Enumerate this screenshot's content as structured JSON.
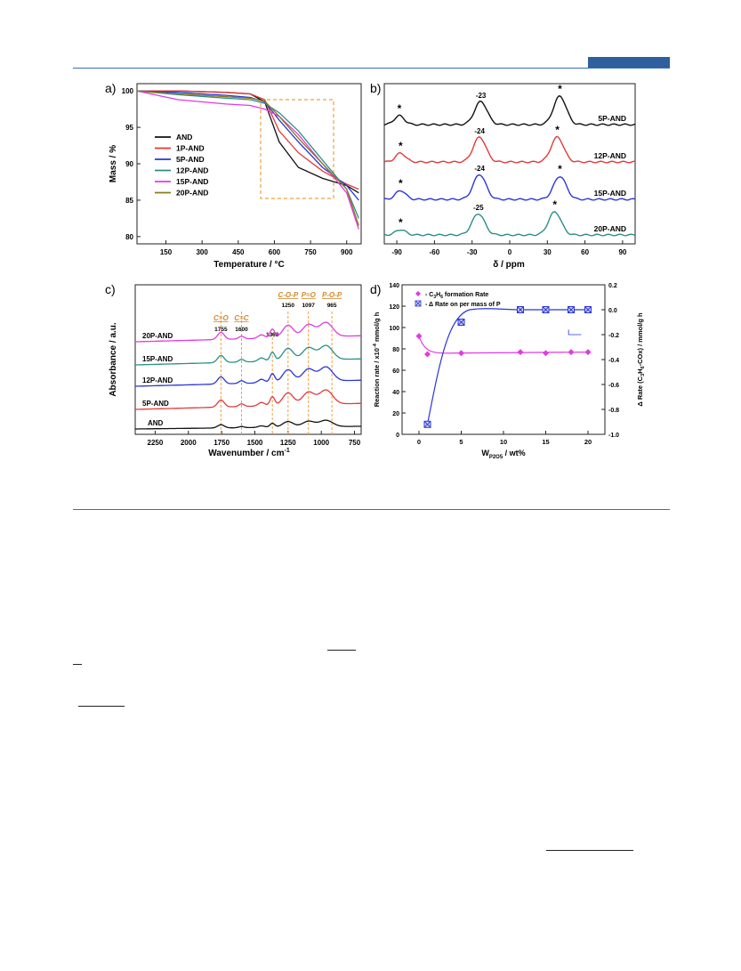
{
  "colors": {
    "rule": "#3a6fb7",
    "accent": "#2f5f9f"
  },
  "panels": {
    "a": {
      "label": "a)",
      "chart_data": {
        "type": "line",
        "xlabel": "Temperature / °C",
        "ylabel": "Mass / %",
        "xlim": [
          30,
          960
        ],
        "ylim": [
          79,
          101
        ],
        "xticks": [
          150,
          300,
          450,
          600,
          750,
          900
        ],
        "yticks": [
          80,
          85,
          90,
          95,
          100
        ],
        "legend_position": "left",
        "series": [
          {
            "name": "AND",
            "color": "#111111",
            "x": [
              30,
              200,
              400,
              500,
              560,
              620,
              700,
              800,
              900,
              950
            ],
            "y": [
              100,
              100,
              99.8,
              99.6,
              98.5,
              93,
              89.5,
              88,
              87,
              86
            ]
          },
          {
            "name": "1P-AND",
            "color": "#e23a3a",
            "x": [
              30,
              200,
              400,
              500,
              560,
              620,
              700,
              800,
              900,
              950
            ],
            "y": [
              100,
              100,
              99.8,
              99.6,
              98.8,
              94.5,
              91.5,
              89,
              87.2,
              86.5
            ]
          },
          {
            "name": "5P-AND",
            "color": "#2a36d8",
            "x": [
              30,
              200,
              400,
              500,
              560,
              620,
              700,
              800,
              900,
              950
            ],
            "y": [
              100,
              99.8,
              99.4,
              99.1,
              98.5,
              96,
              93,
              89.5,
              87,
              85
            ]
          },
          {
            "name": "12P-AND",
            "color": "#2b8f86",
            "x": [
              30,
              200,
              400,
              500,
              560,
              620,
              700,
              800,
              900,
              950
            ],
            "y": [
              100,
              99.5,
              99,
              98.8,
              98.3,
              97,
              94.5,
              90.5,
              86.5,
              82.5
            ]
          },
          {
            "name": "15P-AND",
            "color": "#e23ae2",
            "x": [
              30,
              200,
              400,
              500,
              560,
              620,
              700,
              800,
              900,
              950
            ],
            "y": [
              100,
              98.8,
              98.2,
              98,
              97.5,
              96.5,
              94,
              90,
              86,
              81
            ]
          },
          {
            "name": "20P-AND",
            "color": "#8a7a1a",
            "x": [
              30,
              200,
              400,
              500,
              560,
              620,
              700,
              800,
              900,
              950
            ],
            "y": [
              100,
              99.6,
              99.2,
              99,
              98.6,
              96.5,
              93.5,
              90,
              86.5,
              81.5
            ]
          }
        ]
      }
    },
    "b": {
      "label": "b)",
      "chart_data": {
        "type": "line",
        "xlabel": "δ / ppm",
        "xlim": [
          -100,
          100
        ],
        "xticks": [
          -90,
          -60,
          -30,
          0,
          30,
          60,
          90
        ],
        "series": [
          {
            "name": "5P-AND",
            "color": "#111111",
            "peaks": [
              {
                "x": -88,
                "label": "*"
              },
              {
                "x": -23,
                "label": "-23"
              },
              {
                "x": 40,
                "label": "*"
              }
            ]
          },
          {
            "name": "12P-AND",
            "color": "#e23a3a",
            "peaks": [
              {
                "x": -87,
                "label": "*"
              },
              {
                "x": -24,
                "label": "-24"
              },
              {
                "x": 38,
                "label": "*"
              }
            ]
          },
          {
            "name": "15P-AND",
            "color": "#2a36d8",
            "peaks": [
              {
                "x": -87,
                "label": "*"
              },
              {
                "x": -24,
                "label": "-24"
              },
              {
                "x": 40,
                "label": "*"
              }
            ]
          },
          {
            "name": "20P-AND",
            "color": "#2b8f86",
            "peaks": [
              {
                "x": -87,
                "label": "*"
              },
              {
                "x": -25,
                "label": "-25"
              },
              {
                "x": 36,
                "label": "*"
              }
            ]
          }
        ]
      }
    },
    "c": {
      "label": "c)",
      "chart_data": {
        "type": "line",
        "xlabel": "Wavenumber / cm",
        "xlabel_sup": "-1",
        "ylabel": "Absorbance / a.u.",
        "xlim": [
          2400,
          700
        ],
        "xticks": [
          2250,
          2000,
          1750,
          1500,
          1250,
          1000,
          750
        ],
        "series": [
          {
            "name": "20P-AND",
            "color": "#e23ae2"
          },
          {
            "name": "15P-AND",
            "color": "#2b8f86"
          },
          {
            "name": "12P-AND",
            "color": "#2a36d8"
          },
          {
            "name": "5P-AND",
            "color": "#e23a3a"
          },
          {
            "name": "AND",
            "color": "#111111"
          }
        ],
        "annotations": [
          {
            "label": "C=O",
            "value": "1755",
            "x": 1755
          },
          {
            "label": "C=C",
            "value": "1600",
            "x": 1600
          },
          {
            "label": "",
            "value": "1368",
            "x": 1368
          },
          {
            "label": "C-O-P",
            "value": "1250",
            "x": 1250
          },
          {
            "label": "P=O",
            "value": "1097",
            "x": 1097
          },
          {
            "label": "P-O-P",
            "value": "965",
            "x": 920
          }
        ]
      }
    },
    "d": {
      "label": "d)",
      "chart_data": {
        "type": "scatter",
        "xlabel": "W",
        "xlabel_sub": "P2O5",
        "xlabel_suffix": " / wt%",
        "ylabel": "Reaction rate / x10",
        "ylabel_sup": "-4",
        "ylabel_suffix": " mmol/g h",
        "y2label": "Δ Rate (C",
        "y2label_rest": "H",
        "y2label_tail": "-COx) / mmol/g h",
        "xlim": [
          -2,
          22
        ],
        "ylim": [
          0,
          140
        ],
        "y2lim": [
          -1.0,
          0.2
        ],
        "xticks": [
          0,
          5,
          10,
          15,
          20
        ],
        "yticks": [
          0,
          20,
          40,
          60,
          80,
          100,
          120,
          140
        ],
        "y2ticks": [
          -1.0,
          -0.8,
          -0.6,
          -0.4,
          -0.2,
          0.0,
          0.2
        ],
        "series": [
          {
            "name": "C3H6 formation Rate",
            "color": "#e23ae2",
            "marker": "diamond",
            "x": [
              0,
              1,
              5,
              12,
              15,
              18,
              20
            ],
            "y": [
              92,
              75,
              76,
              77,
              76,
              77,
              77
            ]
          },
          {
            "name": "Rate on per mass of P",
            "color": "#2a36d8",
            "marker": "xbox",
            "axis": "right",
            "x": [
              1,
              5,
              12,
              15,
              18,
              20
            ],
            "y": [
              -0.92,
              -0.1,
              0.0,
              0.0,
              0.0,
              0.0
            ]
          }
        ],
        "legend": [
          {
            "pre": "- C",
            "sub": "3",
            "mid": "H",
            "sub2": "6",
            "post": " formation Rate"
          },
          {
            "pre": "- Δ Rate on per mass of P"
          }
        ]
      }
    }
  }
}
